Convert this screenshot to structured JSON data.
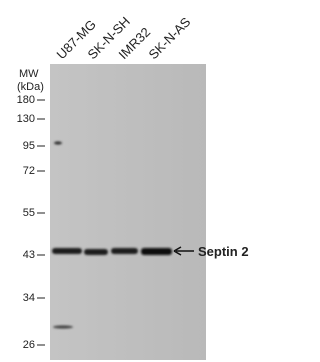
{
  "lanes": [
    "U87-MG",
    "SK-N-SH",
    "IMR32",
    "SK-N-AS"
  ],
  "mw_label": "MW",
  "mw_unit": "(kDa)",
  "markers": [
    "180",
    "130",
    "95",
    "72",
    "55",
    "43",
    "34",
    "26"
  ],
  "band_label": "Septin 2"
}
